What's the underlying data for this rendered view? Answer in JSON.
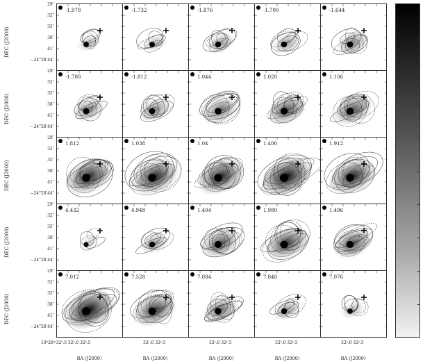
{
  "panels": [
    {
      "velocity": "-1.978"
    },
    {
      "velocity": "-1.732"
    },
    {
      "velocity": "-1.876"
    },
    {
      "velocity": "-1.700"
    },
    {
      "velocity": "-1.644"
    },
    {
      "velocity": "-1.708"
    },
    {
      "velocity": "-1.812"
    },
    {
      "velocity": "1.044"
    },
    {
      "velocity": "1.020"
    },
    {
      "velocity": "1.106"
    },
    {
      "velocity": "1.812"
    },
    {
      "velocity": "1.038"
    },
    {
      "velocity": "1.04"
    },
    {
      "velocity": "1.400"
    },
    {
      "velocity": "1.912"
    },
    {
      "velocity": "4.432"
    },
    {
      "velocity": "4.948"
    },
    {
      "velocity": "1.404"
    },
    {
      "velocity": "1.980"
    },
    {
      "velocity": "1.496"
    },
    {
      "velocity": "7.012"
    },
    {
      "velocity": "7.528"
    },
    {
      "velocity": "7.084"
    },
    {
      "velocity": "7.840"
    },
    {
      "velocity": "7.076"
    }
  ],
  "axes": {
    "ylabel": "DEC (J2000)",
    "xlabel": "RA (J2000)",
    "yticks": [
      "29″",
      "32″",
      "35″",
      "38″",
      "41″",
      "−24°28′44″"
    ],
    "xticks_first": "10ʰ26ᵐ32ˢ.5 32ˢ.0  32ˢ.5",
    "xticks": "32ˢ.0  32ˢ.5"
  },
  "colorbar": {
    "colormap": "grayscale, black (high) to white (low)"
  }
}
